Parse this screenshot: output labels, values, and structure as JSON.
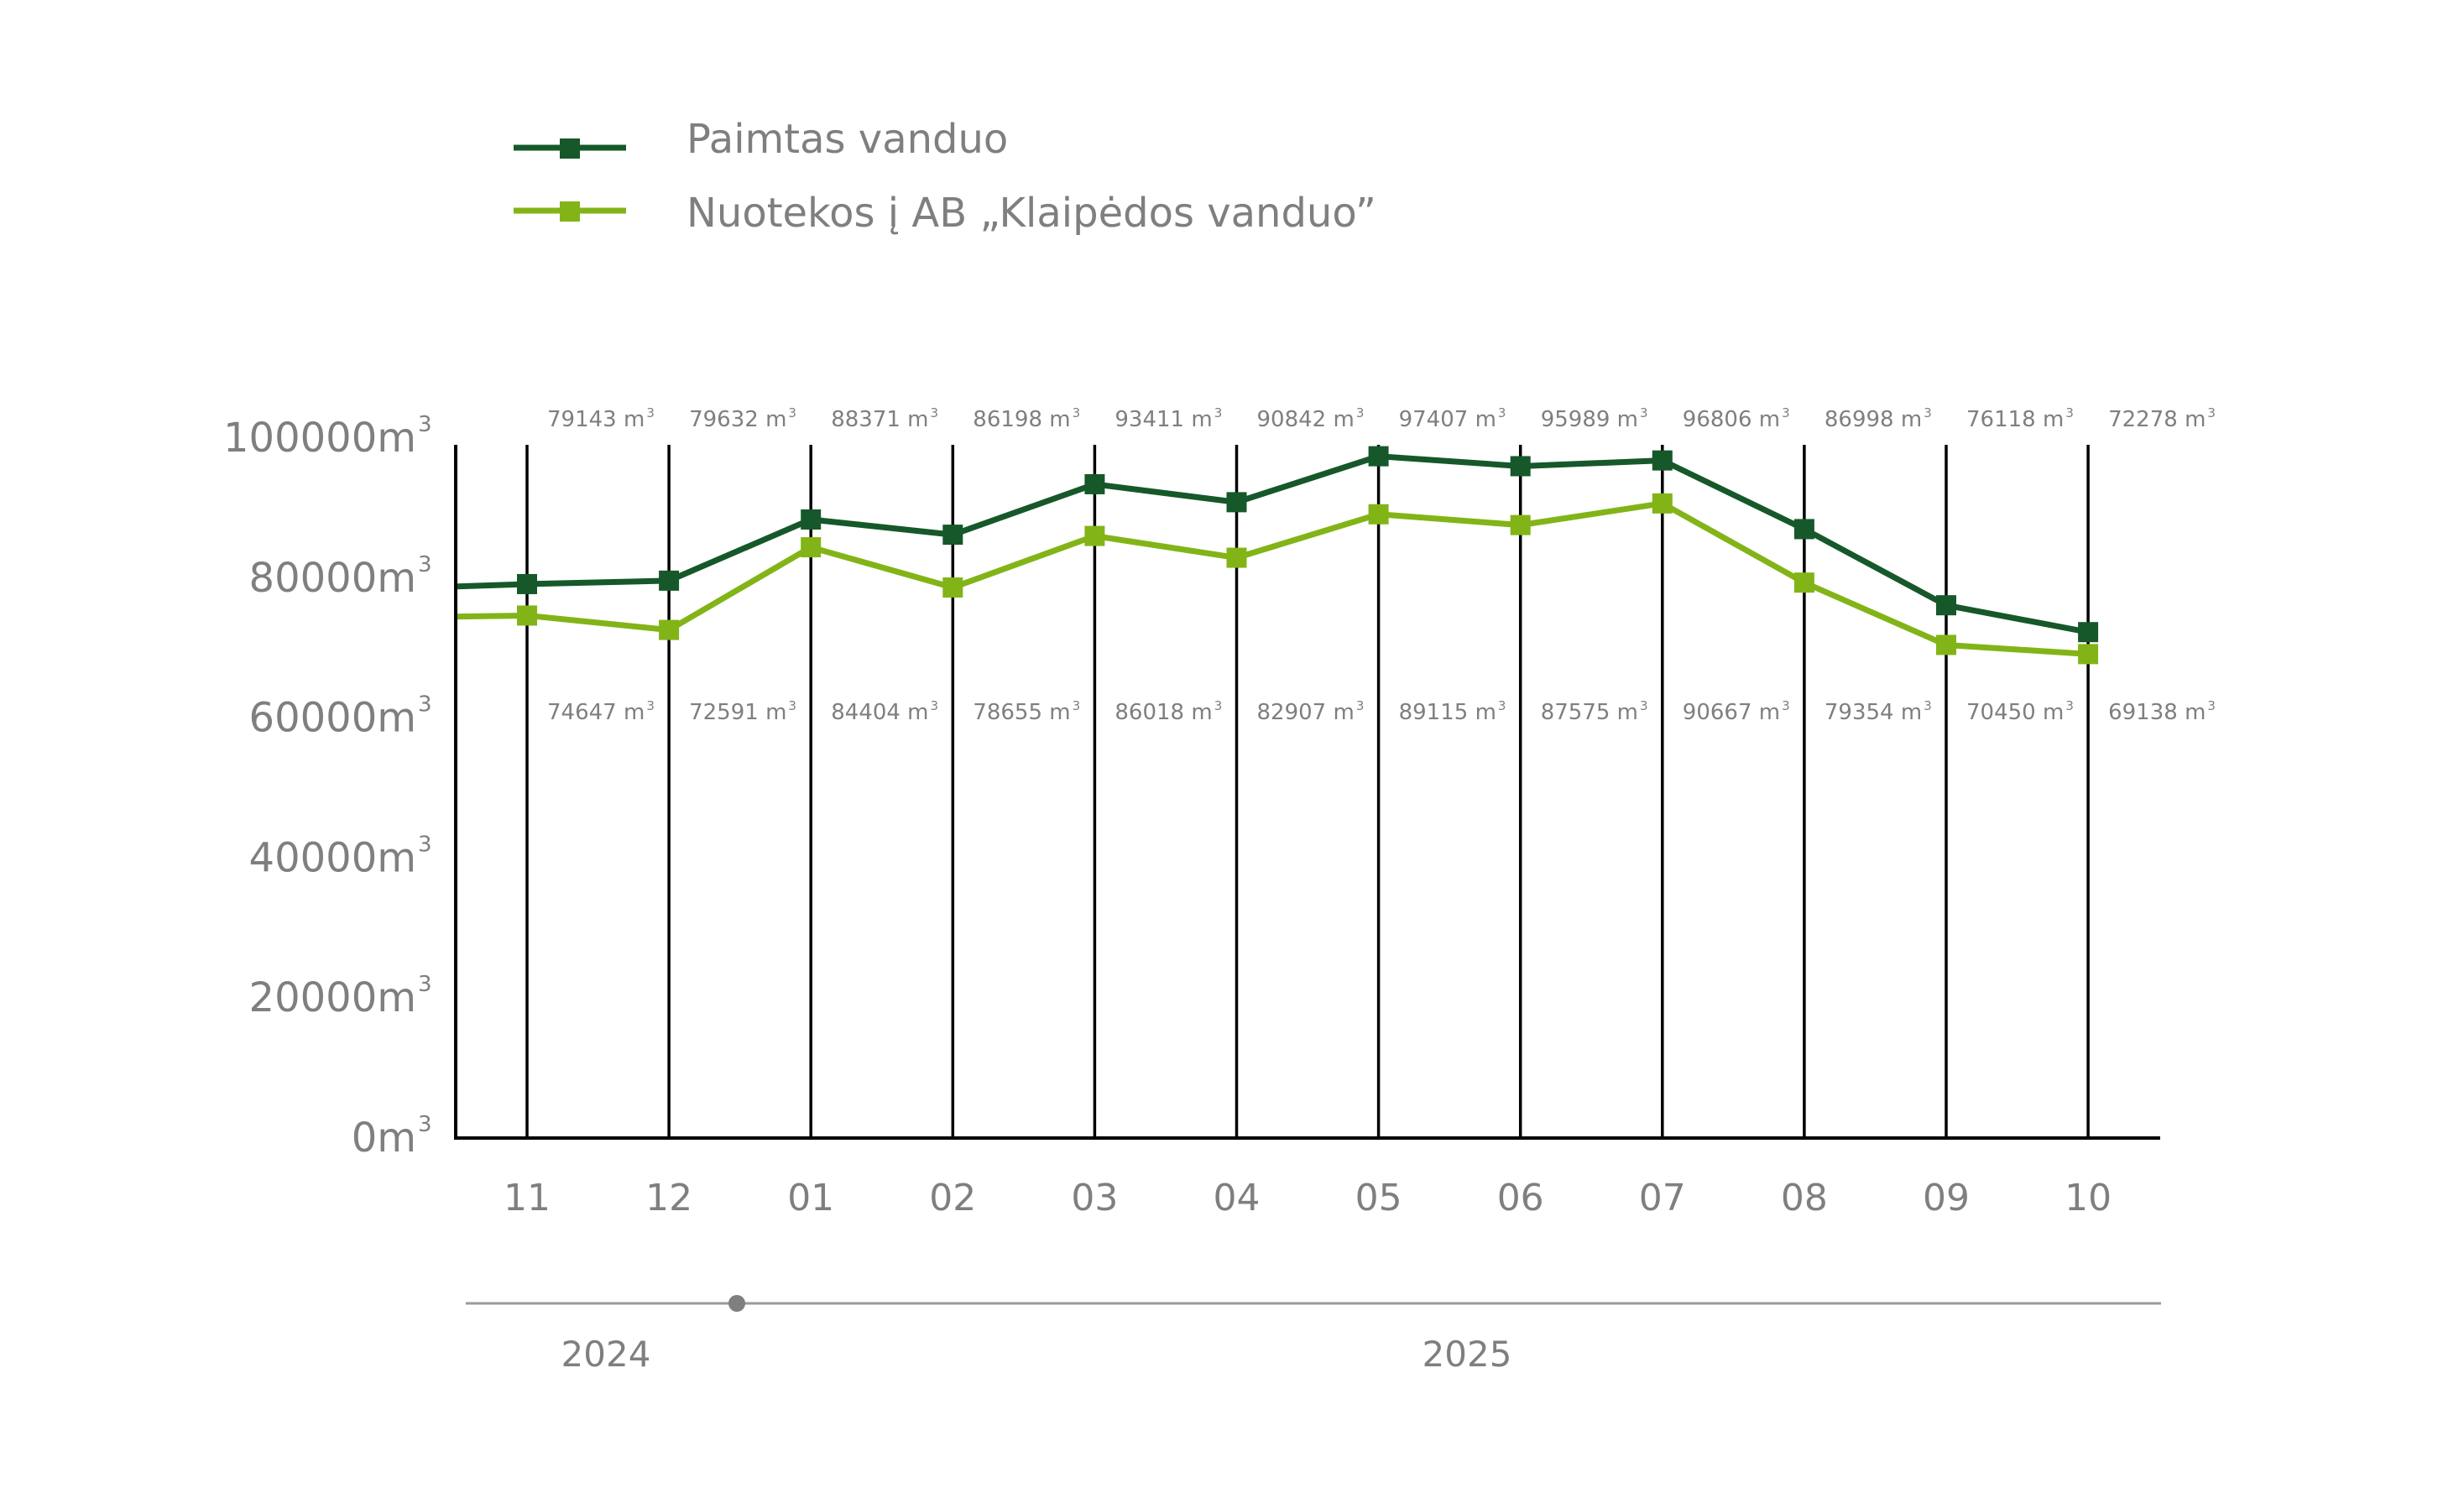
{
  "colors": {
    "series_dark": "#16582a",
    "series_light": "#82b417",
    "text": "#7f7f7f",
    "axis": "#000000",
    "timeline": "#9a9a9a",
    "timeline_dot": "#7f7f7f"
  },
  "chart_data": {
    "type": "line",
    "unit_suffix": "m",
    "unit_superscript": "3",
    "data_label_suffix": " m",
    "categories": [
      "11",
      "12",
      "01",
      "02",
      "03",
      "04",
      "05",
      "06",
      "07",
      "08",
      "09",
      "10"
    ],
    "series": [
      {
        "name": "Paimtas vanduo",
        "color": "#16582a",
        "label_position": "top",
        "values": [
          79143,
          79632,
          88371,
          86198,
          93411,
          90842,
          97407,
          95989,
          96806,
          86998,
          76118,
          72278
        ],
        "labels": [
          "79143",
          "79632",
          "88371",
          "86198",
          "93411",
          "90842",
          "97407",
          "95989",
          "96806",
          "86998",
          "76118",
          "72278"
        ],
        "start_value": 78800
      },
      {
        "name": "Nuotekos į AB „Klaipėdos vanduo”",
        "color": "#82b417",
        "label_position": "bottom",
        "values": [
          74647,
          72591,
          84404,
          78655,
          86018,
          82907,
          89115,
          87575,
          90667,
          79354,
          70450,
          69138
        ],
        "labels": [
          "74647",
          "72591",
          "84404",
          "78655",
          "86018",
          "82907",
          "89115",
          "87575",
          "90667",
          "79354",
          "70450",
          "69138"
        ],
        "start_value": 74500
      }
    ],
    "y_ticks": [
      "0",
      "20000",
      "40000",
      "60000",
      "80000",
      "100000"
    ],
    "ylim": [
      0,
      100000
    ],
    "years": [
      "2024",
      "2025"
    ],
    "legend_position": "top-left"
  }
}
